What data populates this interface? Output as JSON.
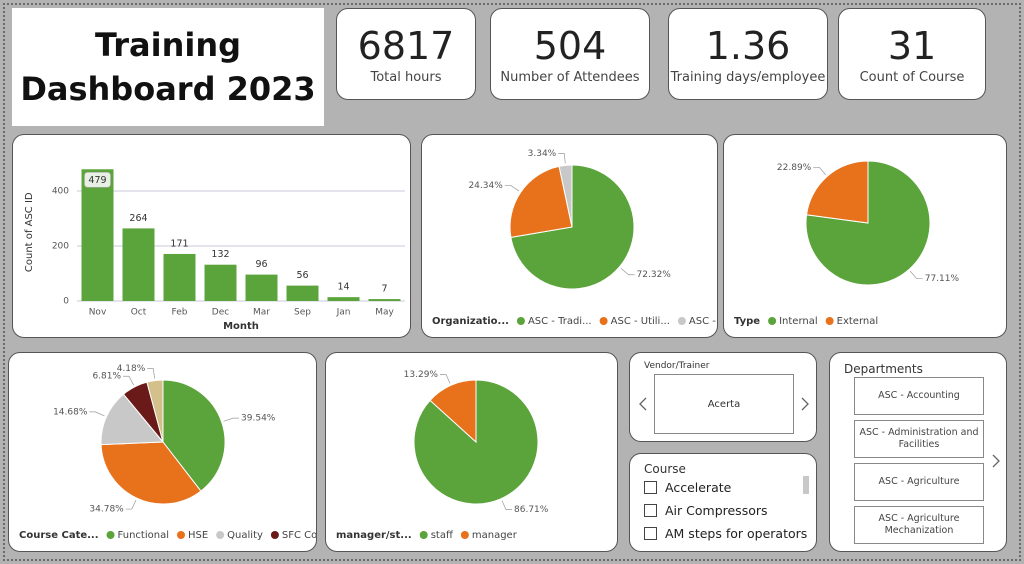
{
  "header": {
    "title": "Training Dashboard 2023"
  },
  "kpis": [
    {
      "value": 6817,
      "label": "Total hours"
    },
    {
      "value": 504,
      "label": "Number of Attendees"
    },
    {
      "value": 1.36,
      "label": "Training days/employee"
    },
    {
      "value": 31,
      "label": "Count of Course"
    }
  ],
  "chart_data": [
    {
      "type": "bar",
      "y_label": "Count of ASC ID",
      "x_label": "Month",
      "categories": [
        "Nov",
        "Oct",
        "Feb",
        "Dec",
        "Mar",
        "Sep",
        "Jan",
        "May"
      ],
      "values": [
        479,
        264,
        171,
        132,
        96,
        56,
        14,
        7
      ],
      "color": "#5ba33b",
      "ylim": [
        0,
        500
      ],
      "yticks": [
        0,
        200,
        400
      ],
      "grid": true
    },
    {
      "type": "pie",
      "legend_title": "Organizatio...",
      "categories": [
        "ASC - Tradi...",
        "ASC - Utili...",
        "ASC - Wo..."
      ],
      "values": [
        72.32,
        24.34,
        3.34
      ],
      "value_labels": [
        "72.32%",
        "24.34%",
        "3.34%"
      ],
      "colors": [
        "#5ba33b",
        "#e8711c",
        "#c8c8c8"
      ]
    },
    {
      "type": "pie",
      "legend_title": "Type",
      "categories": [
        "Internal",
        "External"
      ],
      "values": [
        77.11,
        22.89
      ],
      "value_labels": [
        "77.11%",
        "22.89%"
      ],
      "colors": [
        "#5ba33b",
        "#e8711c"
      ]
    },
    {
      "type": "pie",
      "legend_title": "Course Cate...",
      "categories": [
        "Functional",
        "HSE",
        "Quality",
        "SFC Comp...",
        null
      ],
      "values": [
        39.54,
        34.78,
        14.68,
        6.81,
        4.18
      ],
      "value_labels": [
        "39.54%",
        "34.78%",
        "14.68%",
        "6.81%",
        "4.18%"
      ],
      "colors": [
        "#5ba33b",
        "#e8711c",
        "#c8c8c8",
        "#6b1a1a",
        "#d4c08a"
      ]
    },
    {
      "type": "pie",
      "legend_title": "manager/st...",
      "categories": [
        "staff",
        "manager"
      ],
      "values": [
        86.71,
        13.29
      ],
      "value_labels": [
        "86.71%",
        "13.29%"
      ],
      "colors": [
        "#5ba33b",
        "#e8711c"
      ]
    }
  ],
  "slicers": {
    "vendor": {
      "title": "Vendor/Trainer",
      "items": [
        "Acerta"
      ]
    },
    "course": {
      "title": "Course",
      "items": [
        "Accelerate",
        "Air Compressors",
        "AM steps for operators"
      ]
    },
    "departments": {
      "title": "Departments",
      "items": [
        "ASC - Accounting",
        "ASC - Administration and Facilities",
        "ASC - Agriculture",
        "ASC - Agriculture Mechanization"
      ]
    }
  }
}
